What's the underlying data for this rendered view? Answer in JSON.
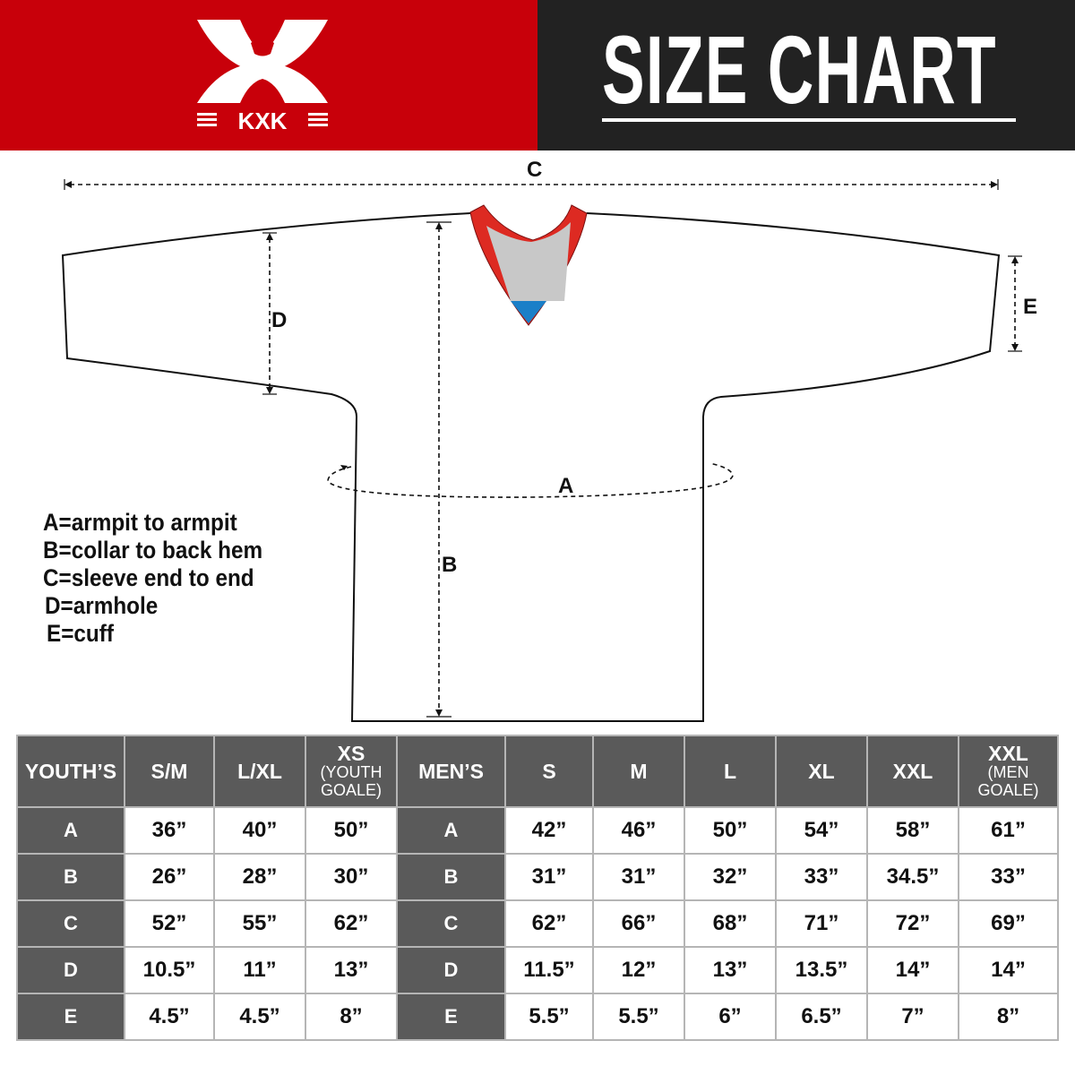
{
  "brand": {
    "logo_text": "KXK",
    "primary_color": "#c8000a",
    "dark_color": "#222222",
    "header_gray": "#5a5a5a"
  },
  "header": {
    "title": "SIZE CHART"
  },
  "diagram": {
    "labels": {
      "a": "A",
      "b": "B",
      "c": "C",
      "d": "D",
      "e": "E"
    },
    "collar_colors": {
      "trim": "#dd2a22",
      "inner": "#c8c8c8",
      "tab": "#1a7fc8"
    }
  },
  "legend": [
    "A=armpit to armpit",
    "B=collar to back hem",
    "C=sleeve end to end",
    "D=armhole",
    "E=cuff"
  ],
  "table": {
    "headers": [
      {
        "main": "YOUTH’S"
      },
      {
        "main": "S/M"
      },
      {
        "main": "L/XL"
      },
      {
        "main": "XS",
        "sub1": "(YOUTH",
        "sub2": "GOALE)"
      },
      {
        "main": "MEN’S"
      },
      {
        "main": "S"
      },
      {
        "main": "M"
      },
      {
        "main": "L"
      },
      {
        "main": "XL"
      },
      {
        "main": "XXL"
      },
      {
        "main": "XXL",
        "sub1": "(MEN",
        "sub2": "GOALE)"
      }
    ],
    "rows": [
      {
        "key": "A",
        "youth": [
          "36”",
          "40”",
          "50”"
        ],
        "men_key": "A",
        "men": [
          "42”",
          "46”",
          "50”",
          "54”",
          "58”",
          "61”"
        ]
      },
      {
        "key": "B",
        "youth": [
          "26”",
          "28”",
          "30”"
        ],
        "men_key": "B",
        "men": [
          "31”",
          "31”",
          "32”",
          "33”",
          "34.5”",
          "33”"
        ]
      },
      {
        "key": "C",
        "youth": [
          "52”",
          "55”",
          "62”"
        ],
        "men_key": "C",
        "men": [
          "62”",
          "66”",
          "68”",
          "71”",
          "72”",
          "69”"
        ]
      },
      {
        "key": "D",
        "youth": [
          "10.5”",
          "11”",
          "13”"
        ],
        "men_key": "D",
        "men": [
          "11.5”",
          "12”",
          "13”",
          "13.5”",
          "14”",
          "14”"
        ]
      },
      {
        "key": "E",
        "youth": [
          "4.5”",
          "4.5”",
          "8”"
        ],
        "men_key": "E",
        "men": [
          "5.5”",
          "5.5”",
          "6”",
          "6.5”",
          "7”",
          "8”"
        ]
      }
    ]
  }
}
